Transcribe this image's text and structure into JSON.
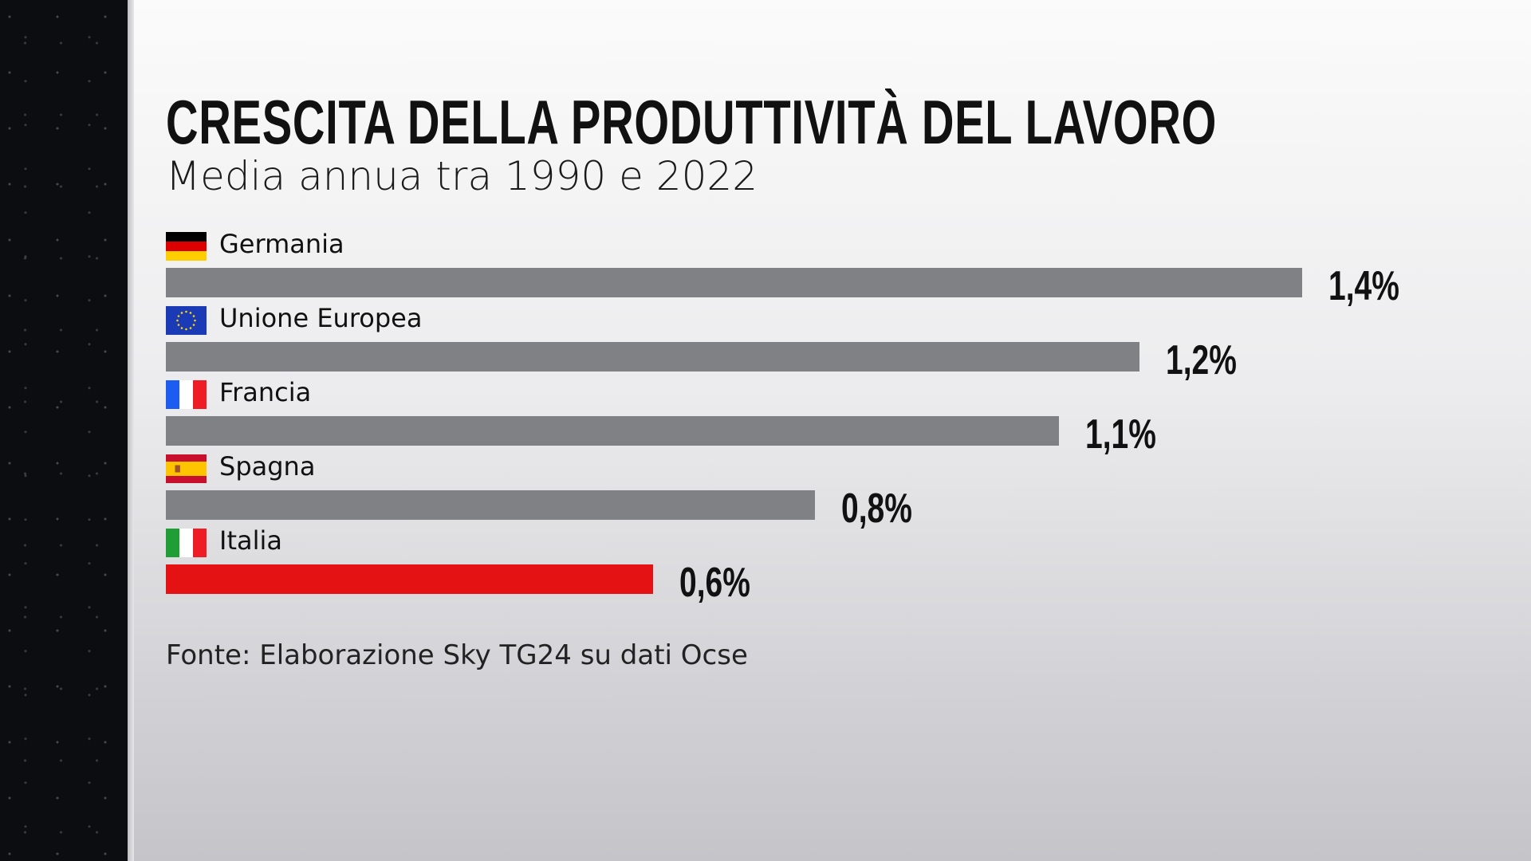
{
  "colors": {
    "bar": "#7f8184",
    "highlight": "#e41213"
  },
  "chart_data": {
    "type": "bar",
    "orientation": "horizontal",
    "title": "CRESCITA DELLA PRODUTTIVITÀ DEL LAVORO",
    "subtitle": "Media annua tra 1990 e 2022",
    "categories": [
      "Germania",
      "Unione Europea",
      "Francia",
      "Spagna",
      "Italia"
    ],
    "values": [
      1.4,
      1.2,
      1.1,
      0.8,
      0.6
    ],
    "value_labels": [
      "1,4%",
      "1,2%",
      "1,1%",
      "0,8%",
      "0,6%"
    ],
    "flags": [
      "germany-flag",
      "eu-flag",
      "france-flag",
      "spain-flag",
      "italy-flag"
    ],
    "highlight": "Italia",
    "xlim": [
      0,
      1.4
    ],
    "grid": false,
    "source": "Fonte: Elaborazione Sky TG24 su dati Ocse"
  }
}
